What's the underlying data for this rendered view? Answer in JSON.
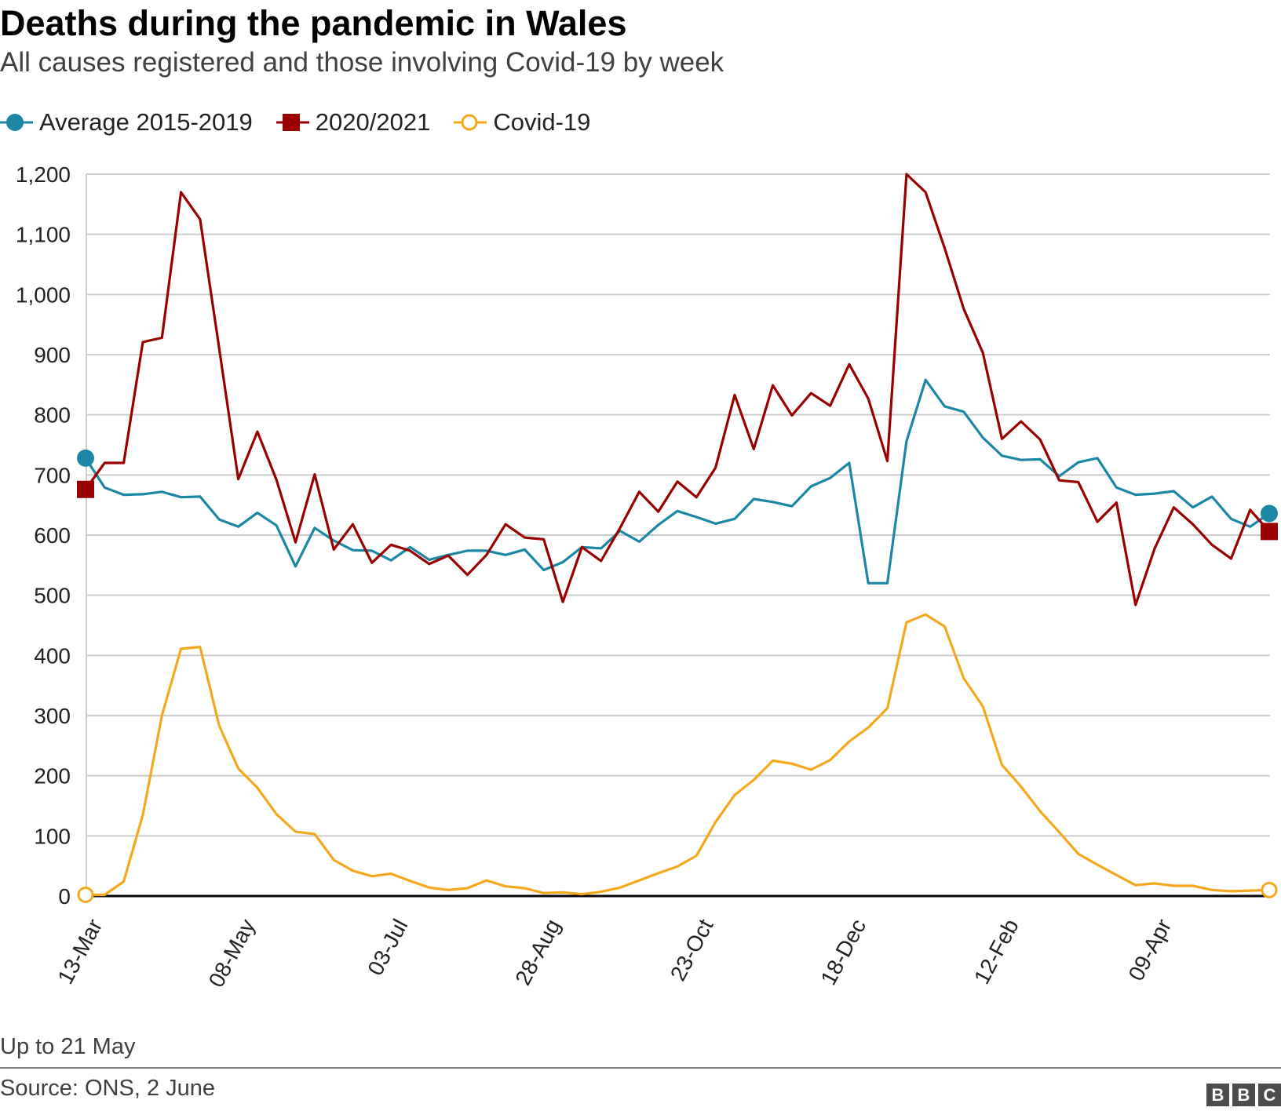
{
  "title": "Deaths during the pandemic in Wales",
  "subtitle": "All causes registered and those involving Covid-19 by week",
  "footnote": "Up to 21 May",
  "source": "Source: ONS, 2 June",
  "logo": [
    "B",
    "B",
    "C"
  ],
  "colors": {
    "average": "#1b87a5",
    "current": "#990000",
    "covid": "#f5a81d",
    "grid": "#cccccc",
    "axis": "#000000"
  },
  "chart_data": {
    "type": "line",
    "title": "Deaths during the pandemic in Wales",
    "xlabel": "",
    "ylabel": "",
    "ylim": [
      0,
      1200
    ],
    "yticks": [
      0,
      100,
      200,
      300,
      400,
      500,
      600,
      700,
      800,
      900,
      1000,
      1100,
      1200
    ],
    "ytick_labels": [
      "0",
      "100",
      "200",
      "300",
      "400",
      "500",
      "600",
      "700",
      "800",
      "900",
      "1,000",
      "1,100",
      "1,200"
    ],
    "x_tick_labels": [
      {
        "index": 0,
        "label": "13-Mar"
      },
      {
        "index": 8,
        "label": "08-May"
      },
      {
        "index": 16,
        "label": "03-Jul"
      },
      {
        "index": 24,
        "label": "28-Aug"
      },
      {
        "index": 32,
        "label": "23-Oct"
      },
      {
        "index": 40,
        "label": "18-Dec"
      },
      {
        "index": 48,
        "label": "12-Feb"
      },
      {
        "index": 56,
        "label": "09-Apr"
      }
    ],
    "legend_position": "top-left",
    "grid": true,
    "series": [
      {
        "name": "Average 2015-2019",
        "color": "#1b87a5",
        "marker": "circle",
        "values": [
          728,
          679,
          667,
          668,
          672,
          663,
          664,
          626,
          614,
          637,
          616,
          548,
          612,
          591,
          575,
          574,
          558,
          580,
          559,
          567,
          574,
          574,
          567,
          576,
          542,
          555,
          580,
          578,
          607,
          589,
          617,
          640,
          630,
          619,
          627,
          660,
          655,
          648,
          681,
          695,
          720,
          520,
          520,
          756,
          858,
          814,
          805,
          762,
          732,
          725,
          726,
          698,
          721,
          728,
          679,
          667,
          669,
          673,
          646,
          664,
          627,
          614,
          636
        ]
      },
      {
        "name": "2020/2021",
        "color": "#990000",
        "marker": "square",
        "values": [
          676,
          720,
          720,
          921,
          928,
          1170,
          1125,
          910,
          693,
          772,
          692,
          588,
          701,
          576,
          618,
          554,
          584,
          574,
          552,
          566,
          534,
          567,
          618,
          596,
          593,
          489,
          580,
          557,
          612,
          672,
          639,
          689,
          663,
          712,
          833,
          743,
          849,
          799,
          836,
          815,
          884,
          827,
          723,
          1200,
          1170,
          1077,
          976,
          903,
          760,
          789,
          759,
          691,
          688,
          622,
          654,
          484,
          578,
          646,
          618,
          584,
          561,
          642,
          606
        ]
      },
      {
        "name": "Covid-19",
        "color": "#f5a81d",
        "marker": "open-circle",
        "values": [
          2,
          2,
          24,
          135,
          300,
          411,
          414,
          283,
          212,
          180,
          136,
          107,
          103,
          60,
          42,
          33,
          37,
          25,
          14,
          10,
          13,
          26,
          16,
          13,
          5,
          6,
          3,
          7,
          14,
          26,
          38,
          49,
          67,
          123,
          168,
          193,
          225,
          220,
          210,
          226,
          257,
          280,
          312,
          455,
          468,
          448,
          362,
          315,
          218,
          182,
          141,
          106,
          70,
          52,
          35,
          18,
          21,
          17,
          17,
          10,
          8,
          9,
          10
        ]
      }
    ]
  }
}
